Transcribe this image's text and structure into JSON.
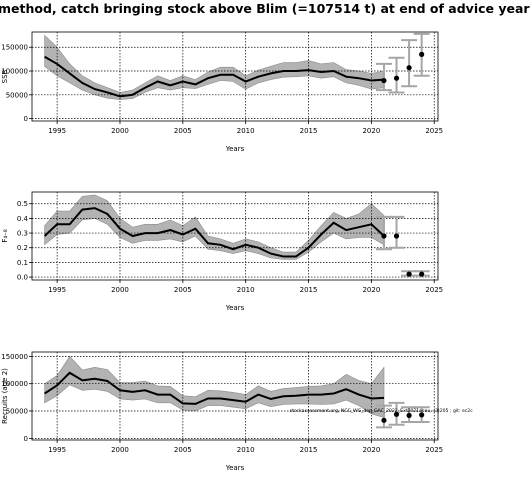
{
  "title": "method, catch bringing stock above Blim (=107514 t) at end of advice year",
  "chart_data": [
    {
      "type": "line",
      "xlabel": "Years",
      "ylabel": "SSB",
      "xlim": [
        1993,
        2025.3
      ],
      "ylim": [
        -5000,
        182000
      ],
      "xticks": [
        1995,
        2000,
        2005,
        2010,
        2015,
        2020,
        2025
      ],
      "yticks": [
        0,
        50000,
        100000,
        150000
      ],
      "grid": true,
      "x": [
        1994,
        1995,
        1996,
        1997,
        1998,
        1999,
        2000,
        2001,
        2002,
        2003,
        2004,
        2005,
        2006,
        2007,
        2008,
        2009,
        2010,
        2011,
        2012,
        2013,
        2014,
        2015,
        2016,
        2017,
        2018,
        2019,
        2020,
        2021
      ],
      "series": [
        {
          "values": [
            130000,
            115000,
            95000,
            75000,
            62000,
            55000,
            47000,
            50000,
            65000,
            78000,
            70000,
            78000,
            72000,
            85000,
            92000,
            92000,
            78000,
            88000,
            95000,
            100000,
            100000,
            102000,
            98000,
            100000,
            88000,
            85000,
            80000,
            82000
          ],
          "lower": [
            110000,
            90000,
            75000,
            60000,
            50000,
            43000,
            40000,
            42000,
            55000,
            65000,
            60000,
            65000,
            63000,
            72000,
            80000,
            78000,
            62000,
            75000,
            82000,
            87000,
            88000,
            90000,
            85000,
            88000,
            75000,
            70000,
            62000,
            65000
          ],
          "upper": [
            175000,
            150000,
            115000,
            90000,
            75000,
            65000,
            55000,
            60000,
            75000,
            90000,
            80000,
            90000,
            82000,
            98000,
            108000,
            108000,
            90000,
            102000,
            110000,
            118000,
            118000,
            122000,
            115000,
            118000,
            103000,
            100000,
            95000,
            100000
          ]
        }
      ],
      "projections": [
        {
          "x": 2021,
          "value": 80000,
          "lower": 60000,
          "upper": 115000
        },
        {
          "x": 2022,
          "value": 85000,
          "lower": 55000,
          "upper": 128000
        },
        {
          "x": 2023,
          "value": 107000,
          "lower": 68000,
          "upper": 165000
        },
        {
          "x": 2024,
          "value": 135000,
          "lower": 90000,
          "upper": 178000
        }
      ]
    },
    {
      "type": "line",
      "xlabel": "Years",
      "ylabel": "F₄₋₈",
      "xlim": [
        1993,
        2025.3
      ],
      "ylim": [
        -0.02,
        0.58
      ],
      "xticks": [
        1995,
        2000,
        2005,
        2010,
        2015,
        2020,
        2025
      ],
      "yticks": [
        0.0,
        0.1,
        0.2,
        0.3,
        0.4,
        0.5
      ],
      "grid": true,
      "x": [
        1994,
        1995,
        1996,
        1997,
        1998,
        1999,
        2000,
        2001,
        2002,
        2003,
        2004,
        2005,
        2006,
        2007,
        2008,
        2009,
        2010,
        2011,
        2012,
        2013,
        2014,
        2015,
        2016,
        2017,
        2018,
        2019,
        2020,
        2021
      ],
      "series": [
        {
          "values": [
            0.28,
            0.36,
            0.36,
            0.46,
            0.47,
            0.43,
            0.33,
            0.28,
            0.3,
            0.3,
            0.32,
            0.29,
            0.33,
            0.23,
            0.22,
            0.19,
            0.22,
            0.2,
            0.16,
            0.14,
            0.14,
            0.2,
            0.29,
            0.37,
            0.32,
            0.34,
            0.36,
            0.28
          ],
          "lower": [
            0.22,
            0.29,
            0.3,
            0.39,
            0.4,
            0.36,
            0.27,
            0.23,
            0.25,
            0.25,
            0.26,
            0.24,
            0.28,
            0.19,
            0.18,
            0.16,
            0.18,
            0.16,
            0.13,
            0.12,
            0.12,
            0.17,
            0.24,
            0.3,
            0.26,
            0.27,
            0.27,
            0.22
          ],
          "upper": [
            0.35,
            0.45,
            0.45,
            0.55,
            0.56,
            0.52,
            0.4,
            0.34,
            0.36,
            0.36,
            0.39,
            0.35,
            0.41,
            0.28,
            0.26,
            0.23,
            0.26,
            0.24,
            0.2,
            0.17,
            0.17,
            0.25,
            0.35,
            0.44,
            0.4,
            0.43,
            0.5,
            0.42
          ]
        }
      ],
      "projections": [
        {
          "x": 2021,
          "value": 0.28,
          "lower": 0.19,
          "upper": 0.41
        },
        {
          "x": 2022,
          "value": 0.28,
          "lower": 0.2,
          "upper": 0.41
        },
        {
          "x": 2023,
          "value": 0.02,
          "lower": 0.01,
          "upper": 0.04
        },
        {
          "x": 2024,
          "value": 0.02,
          "lower": 0.01,
          "upper": 0.04
        }
      ]
    },
    {
      "type": "line",
      "xlabel": "Years",
      "ylabel": "Recruits (age 2)",
      "xlim": [
        1993,
        2025.3
      ],
      "ylim": [
        -3000,
        158000
      ],
      "xticks": [
        1995,
        2000,
        2005,
        2010,
        2015,
        2020,
        2025
      ],
      "yticks": [
        0,
        50000,
        100000,
        150000
      ],
      "grid": true,
      "annotation": "stockassessment.org, NCC_WG_dsp_GAC_2022_Ext2021acou, (3)205 ; git: ec2c",
      "x": [
        1994,
        1995,
        1996,
        1997,
        1998,
        1999,
        2000,
        2001,
        2002,
        2003,
        2004,
        2005,
        2006,
        2007,
        2008,
        2009,
        2010,
        2011,
        2012,
        2013,
        2014,
        2015,
        2016,
        2017,
        2018,
        2019,
        2020,
        2021
      ],
      "series": [
        {
          "values": [
            82000,
            97000,
            120000,
            106000,
            109000,
            105000,
            88000,
            85000,
            88000,
            80000,
            80000,
            64000,
            63000,
            73000,
            73000,
            70000,
            67000,
            80000,
            72000,
            77000,
            78000,
            80000,
            80000,
            82000,
            90000,
            80000,
            73000,
            74000
          ],
          "lower": [
            65000,
            78000,
            98000,
            88000,
            90000,
            86000,
            72000,
            70000,
            72000,
            65000,
            65000,
            52000,
            50000,
            60000,
            60000,
            57000,
            54000,
            65000,
            58000,
            62000,
            63000,
            63000,
            62000,
            63000,
            70000,
            60000,
            45000,
            38000
          ],
          "upper": [
            100000,
            115000,
            150000,
            125000,
            130000,
            126000,
            102000,
            102000,
            105000,
            96000,
            95000,
            78000,
            76000,
            88000,
            87000,
            84000,
            80000,
            96000,
            86000,
            91000,
            93000,
            95000,
            96000,
            100000,
            117000,
            106000,
            100000,
            130000
          ]
        }
      ],
      "projections": [
        {
          "x": 2021,
          "value": 33000,
          "lower": 20000,
          "upper": 60000
        },
        {
          "x": 2022,
          "value": 44000,
          "lower": 25000,
          "upper": 65000
        },
        {
          "x": 2023,
          "value": 42000,
          "lower": 30000,
          "upper": 57000
        },
        {
          "x": 2024,
          "value": 43000,
          "lower": 30000,
          "upper": 57000
        }
      ]
    }
  ]
}
